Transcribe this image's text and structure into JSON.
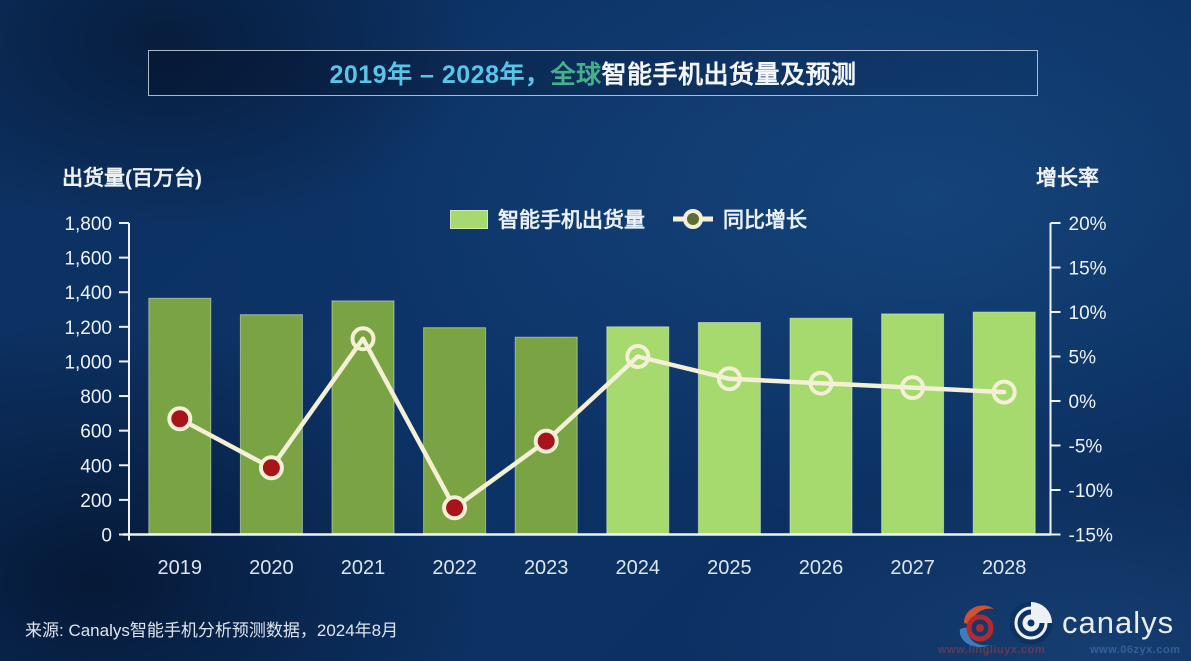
{
  "title": {
    "range": "2019年 – 2028年，",
    "scope": "全球",
    "rest": "智能手机出货量及预测"
  },
  "left_axis_title": "出货量(百万台)",
  "right_axis_title": "增长率",
  "legend": {
    "bars_label": "智能手机出货量",
    "line_label": "同比增长"
  },
  "source": "来源: Canalys智能手机分析预测数据，2024年8月",
  "logo": {
    "brand": "canalys"
  },
  "watermarks": {
    "url1": "www.lingliuyx.com",
    "url2": "www.06zyx.com"
  },
  "colors": {
    "background": "#0c3162",
    "bar_actual": "#7aa343",
    "bar_forecast": "#a6d96e",
    "line": "#f3f0d6",
    "marker_negative_fill": "#a81419",
    "axis_text": "#eef2f7",
    "title_range": "#58c5e9",
    "title_scope": "#45b18c",
    "title_rest": "#f2f5f9"
  },
  "chart_data": {
    "type": "bar",
    "subtype": "combo bar + line, dual axis",
    "title": "2019年 – 2028年，全球智能手机出货量及预测",
    "categories": [
      "2019",
      "2020",
      "2021",
      "2022",
      "2023",
      "2024",
      "2025",
      "2026",
      "2027",
      "2028"
    ],
    "series": [
      {
        "name": "智能手机出货量",
        "type": "bar",
        "axis": "left",
        "unit": "百万台",
        "values": [
          1365,
          1270,
          1350,
          1195,
          1140,
          1200,
          1225,
          1250,
          1275,
          1285
        ],
        "segments": {
          "actual_years": [
            "2019",
            "2020",
            "2021",
            "2022",
            "2023"
          ],
          "forecast_years": [
            "2024",
            "2025",
            "2026",
            "2027",
            "2028"
          ]
        }
      },
      {
        "name": "同比增长",
        "type": "line",
        "axis": "right",
        "unit": "%",
        "values": [
          -2,
          -7.5,
          7,
          -12,
          -4.5,
          5,
          2.5,
          2,
          1.5,
          1
        ],
        "marker_rule": "negative values: dark-red filled marker; positive values: hollow marker"
      }
    ],
    "left_axis": {
      "label": "出货量(百万台)",
      "min": 0,
      "max": 1800,
      "step": 200
    },
    "right_axis": {
      "label": "增长率",
      "min": -15,
      "max": 20,
      "step": 5,
      "unit": "%"
    },
    "legend_position": "top-center",
    "grid": false,
    "notes": "2019–2023 actual bars dark olive green; 2024–2028 forecast bars light green"
  }
}
